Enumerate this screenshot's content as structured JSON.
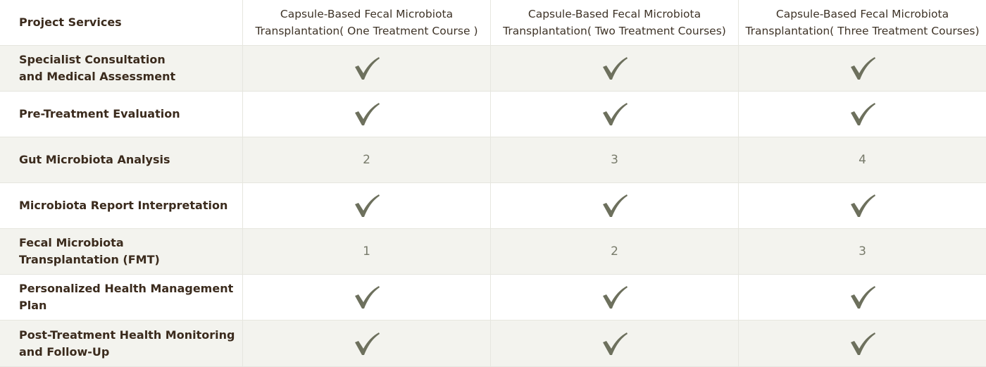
{
  "header": {
    "services_label": "Project Services",
    "plans": [
      "Capsule-Based Fecal Microbiota\nTransplantation( One Treatment Course )",
      "Capsule-Based Fecal Microbiota\nTransplantation( Two Treatment Courses)",
      "Capsule-Based Fecal Microbiota\nTransplantation( Three Treatment Courses)"
    ]
  },
  "colors": {
    "check": "#6d705d",
    "shade": "#f3f3ee",
    "border": "#e6e6df"
  },
  "icon": "checkmark-icon",
  "rows": [
    {
      "label": "Specialist Consultation\nand Medical Assessment",
      "values": [
        "✓",
        "✓",
        "✓"
      ]
    },
    {
      "label": "Pre-Treatment Evaluation",
      "values": [
        "✓",
        "✓",
        "✓"
      ]
    },
    {
      "label": "Gut Microbiota Analysis",
      "values": [
        "2",
        "3",
        "4"
      ]
    },
    {
      "label": "Microbiota Report Interpretation",
      "values": [
        "✓",
        "✓",
        "✓"
      ]
    },
    {
      "label": "Fecal Microbiota\nTransplantation (FMT)",
      "values": [
        "1",
        "2",
        "3"
      ]
    },
    {
      "label": "Personalized Health Management Plan",
      "values": [
        "✓",
        "✓",
        "✓"
      ]
    },
    {
      "label": "Post-Treatment Health Monitoring\nand Follow-Up",
      "values": [
        "✓",
        "✓",
        "✓"
      ]
    }
  ]
}
